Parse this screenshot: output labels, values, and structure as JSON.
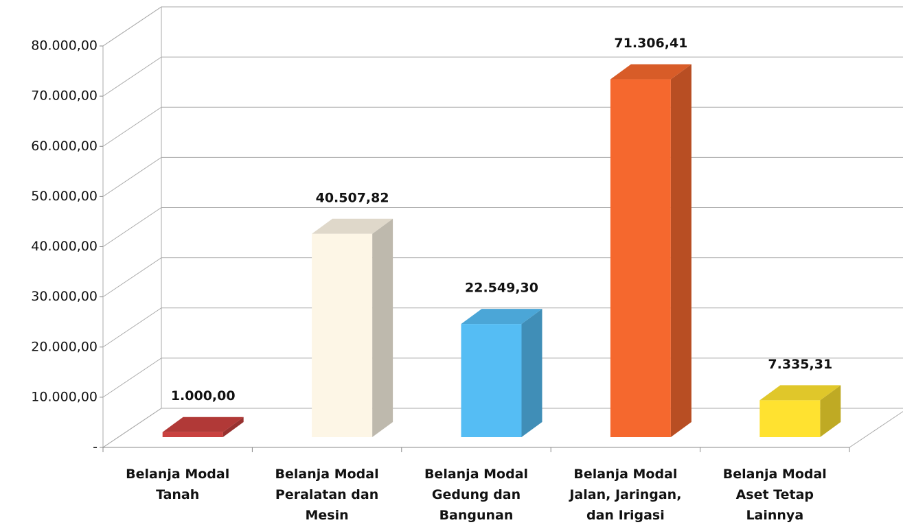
{
  "chart_data": {
    "type": "bar3d",
    "categories": [
      "Belanja Modal Tanah",
      "Belanja Modal Peralatan dan Mesin",
      "Belanja Modal Gedung dan Bangunan",
      "Belanja Modal Jalan, Jaringan, dan Irigasi",
      "Belanja Modal Aset Tetap Lainnya"
    ],
    "values": [
      1000.0,
      40507.82,
      22549.3,
      71306.41,
      7335.31
    ],
    "value_labels": [
      "1.000,00",
      "40.507,82",
      "22.549,30",
      "71.306,41",
      "7.335,31"
    ],
    "colors": [
      "#c9413f",
      "#fdf6e6",
      "#55bdf4",
      "#f5682e",
      "#ffe230"
    ],
    "ylim": [
      0,
      80000
    ],
    "yticks": [
      {
        "value": 0,
        "label": "-"
      },
      {
        "value": 10000,
        "label": "10.000,00"
      },
      {
        "value": 20000,
        "label": "20.000,00"
      },
      {
        "value": 30000,
        "label": "30.000,00"
      },
      {
        "value": 40000,
        "label": "40.000,00"
      },
      {
        "value": 50000,
        "label": "50.000,00"
      },
      {
        "value": 60000,
        "label": "60.000,00"
      },
      {
        "value": 70000,
        "label": "70.000,00"
      },
      {
        "value": 80000,
        "label": "80.000,00"
      }
    ],
    "grid": true
  }
}
